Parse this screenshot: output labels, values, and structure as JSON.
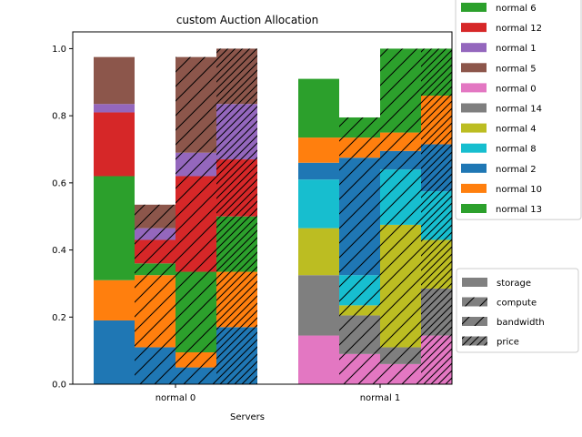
{
  "chart_data": {
    "type": "bar",
    "title": "custom Auction Allocation",
    "xlabel": "Servers",
    "ylabel": "",
    "ylim": [
      0,
      1.05
    ],
    "yticks": [
      0.0,
      0.2,
      0.4,
      0.6,
      0.8,
      1.0
    ],
    "ytick_labels": [
      "0.0",
      "0.2",
      "0.4",
      "0.6",
      "0.8",
      "1.0"
    ],
    "categories": [
      "normal 0",
      "normal 1"
    ],
    "resources": [
      {
        "name": "storage",
        "hatch": "none"
      },
      {
        "name": "compute",
        "hatch": "single"
      },
      {
        "name": "bandwidth",
        "hatch": "single"
      },
      {
        "name": "price",
        "hatch": "double"
      }
    ],
    "tasks": [
      {
        "name": "normal 6",
        "color": "#2ca02c"
      },
      {
        "name": "normal 12",
        "color": "#d62728"
      },
      {
        "name": "normal 1",
        "color": "#9467bd"
      },
      {
        "name": "normal 5",
        "color": "#8c564b"
      },
      {
        "name": "normal 0",
        "color": "#e377c2"
      },
      {
        "name": "normal 14",
        "color": "#7f7f7f"
      },
      {
        "name": "normal 4",
        "color": "#bcbd22"
      },
      {
        "name": "normal 8",
        "color": "#17becf"
      },
      {
        "name": "normal 2",
        "color": "#1f77b4"
      },
      {
        "name": "normal 10",
        "color": "#ff7f0e"
      },
      {
        "name": "normal 13",
        "color": "#2ca02c"
      }
    ],
    "stacks": [
      {
        "server": "normal 0",
        "resource": "storage",
        "segments": [
          {
            "task": "normal 2",
            "value": 0.19
          },
          {
            "task": "normal 10",
            "value": 0.12
          },
          {
            "task": "normal 6",
            "value": 0.31
          },
          {
            "task": "normal 12",
            "value": 0.19
          },
          {
            "task": "normal 1",
            "value": 0.025
          },
          {
            "task": "normal 5",
            "value": 0.14
          }
        ]
      },
      {
        "server": "normal 0",
        "resource": "compute",
        "segments": [
          {
            "task": "normal 2",
            "value": 0.11
          },
          {
            "task": "normal 10",
            "value": 0.215
          },
          {
            "task": "normal 6",
            "value": 0.035
          },
          {
            "task": "normal 12",
            "value": 0.07
          },
          {
            "task": "normal 1",
            "value": 0.035
          },
          {
            "task": "normal 5",
            "value": 0.07
          }
        ]
      },
      {
        "server": "normal 0",
        "resource": "bandwidth",
        "segments": [
          {
            "task": "normal 2",
            "value": 0.05
          },
          {
            "task": "normal 10",
            "value": 0.045
          },
          {
            "task": "normal 6",
            "value": 0.24
          },
          {
            "task": "normal 12",
            "value": 0.285
          },
          {
            "task": "normal 1",
            "value": 0.07
          },
          {
            "task": "normal 5",
            "value": 0.285
          }
        ]
      },
      {
        "server": "normal 0",
        "resource": "price",
        "segments": [
          {
            "task": "normal 2",
            "value": 0.17
          },
          {
            "task": "normal 10",
            "value": 0.165
          },
          {
            "task": "normal 6",
            "value": 0.165
          },
          {
            "task": "normal 12",
            "value": 0.17
          },
          {
            "task": "normal 1",
            "value": 0.165
          },
          {
            "task": "normal 5",
            "value": 0.165
          }
        ]
      },
      {
        "server": "normal 1",
        "resource": "storage",
        "segments": [
          {
            "task": "normal 0",
            "value": 0.145
          },
          {
            "task": "normal 14",
            "value": 0.18
          },
          {
            "task": "normal 4",
            "value": 0.14
          },
          {
            "task": "normal 8",
            "value": 0.145
          },
          {
            "task": "normal 2",
            "value": 0.05
          },
          {
            "task": "normal 10",
            "value": 0.075
          },
          {
            "task": "normal 13",
            "value": 0.175
          }
        ]
      },
      {
        "server": "normal 1",
        "resource": "compute",
        "segments": [
          {
            "task": "normal 0",
            "value": 0.09
          },
          {
            "task": "normal 14",
            "value": 0.115
          },
          {
            "task": "normal 4",
            "value": 0.03
          },
          {
            "task": "normal 8",
            "value": 0.09
          },
          {
            "task": "normal 2",
            "value": 0.35
          },
          {
            "task": "normal 10",
            "value": 0.06
          },
          {
            "task": "normal 13",
            "value": 0.06
          }
        ]
      },
      {
        "server": "normal 1",
        "resource": "bandwidth",
        "segments": [
          {
            "task": "normal 0",
            "value": 0.06
          },
          {
            "task": "normal 14",
            "value": 0.05
          },
          {
            "task": "normal 4",
            "value": 0.365
          },
          {
            "task": "normal 8",
            "value": 0.165
          },
          {
            "task": "normal 2",
            "value": 0.055
          },
          {
            "task": "normal 10",
            "value": 0.055
          },
          {
            "task": "normal 13",
            "value": 0.25
          }
        ]
      },
      {
        "server": "normal 1",
        "resource": "price",
        "segments": [
          {
            "task": "normal 0",
            "value": 0.145
          },
          {
            "task": "normal 14",
            "value": 0.14
          },
          {
            "task": "normal 4",
            "value": 0.145
          },
          {
            "task": "normal 8",
            "value": 0.145
          },
          {
            "task": "normal 2",
            "value": 0.14
          },
          {
            "task": "normal 10",
            "value": 0.145
          },
          {
            "task": "normal 13",
            "value": 0.14
          }
        ]
      }
    ],
    "legend_tasks_placement": "top-right, outside plot",
    "legend_resources_placement": "bottom-right, outside plot",
    "grid": false
  }
}
